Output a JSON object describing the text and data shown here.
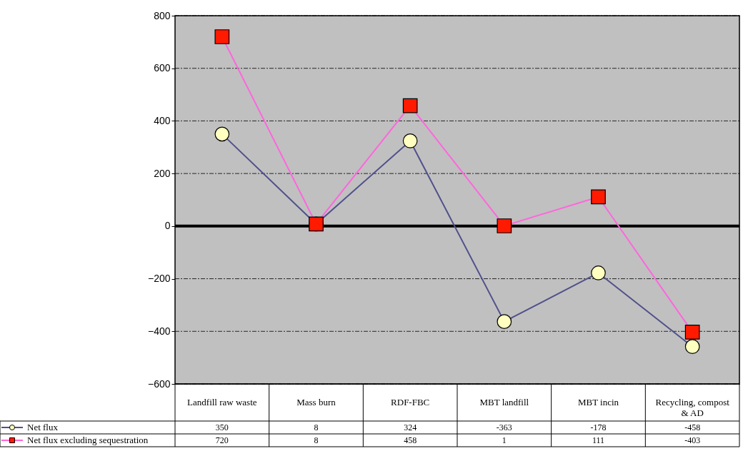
{
  "chart_data": {
    "type": "line",
    "categories": [
      "Landfill raw waste",
      "Mass burn",
      "RDF-FBC",
      "MBT landfill",
      "MBT incin",
      "Recycling, compost\n& AD"
    ],
    "series": [
      {
        "name": "Net flux",
        "color": "#50508c",
        "marker": "circle",
        "colors": [
          "#ffffc0",
          "#ffffc0",
          "#ffffc0",
          "#ffffc0",
          "#ffffc0",
          "#ffffc0"
        ],
        "values": [
          350,
          8,
          324,
          -363,
          -178,
          -458
        ]
      },
      {
        "name": "Net flux excluding sequestration",
        "color": "#ff66dd",
        "marker": "square",
        "colors": [
          "#ff1a00",
          "#ff1a00",
          "#ff1a00",
          "#ff1a00",
          "#ff1a00",
          "#ff1a00"
        ],
        "values": [
          720,
          8,
          458,
          1,
          111,
          -403
        ]
      }
    ],
    "ylim": [
      -600,
      800
    ],
    "yticks": [
      -600,
      -400,
      -200,
      0,
      200,
      400,
      600,
      800
    ],
    "grid": "y",
    "legend": "bottom left",
    "data_labels": true,
    "ref_lines": [
      {
        "axis": "y",
        "value": 0,
        "color": "#000000",
        "line_style": "solid"
      }
    ]
  }
}
